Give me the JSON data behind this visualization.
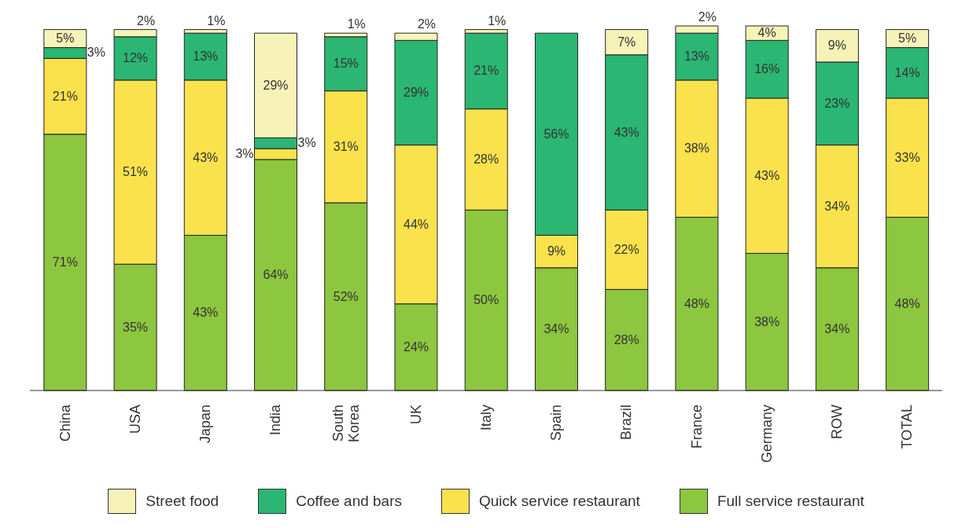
{
  "chart_data": {
    "type": "bar",
    "stacked": true,
    "categories": [
      "China",
      "USA",
      "Japan",
      "India",
      "South Korea",
      "UK",
      "Italy",
      "Spain",
      "Brazil",
      "France",
      "Germany",
      "ROW",
      "TOTAL"
    ],
    "series": [
      {
        "name": "Full service restaurant",
        "color": "#8dc63f",
        "values": [
          71,
          35,
          43,
          64,
          52,
          24,
          50,
          34,
          28,
          48,
          38,
          34,
          48
        ],
        "value_labels": [
          "71%",
          "35%",
          "43%",
          "64%",
          "52%",
          "24%",
          "50%",
          "34%",
          "28%",
          "48%",
          "38%",
          "34%",
          "48%"
        ]
      },
      {
        "name": "Quick service restaurant",
        "color": "#f9e24c",
        "values": [
          21,
          51,
          43,
          3,
          31,
          44,
          28,
          9,
          22,
          38,
          43,
          34,
          33
        ],
        "value_labels": [
          "21%",
          "51%",
          "43%",
          "3%",
          "31%",
          "44%",
          "28%",
          "9%",
          "22%",
          "38%",
          "43%",
          "34%",
          "33%"
        ]
      },
      {
        "name": "Coffee and bars",
        "color": "#2bb673",
        "values": [
          3,
          12,
          13,
          3,
          15,
          29,
          21,
          56,
          43,
          13,
          16,
          23,
          14
        ],
        "value_labels": [
          "3%",
          "12%",
          "13%",
          "3%",
          "15%",
          "29%",
          "21%",
          "56%",
          "43%",
          "13%",
          "16%",
          "23%",
          "14%"
        ]
      },
      {
        "name": "Street food",
        "color": "#f7f3b8",
        "values": [
          5,
          2,
          1,
          29,
          1,
          2,
          1,
          null,
          7,
          2,
          4,
          9,
          5
        ],
        "value_labels": [
          "5%",
          "2%",
          "1%",
          "29%",
          "1%",
          "2%",
          "1%",
          null,
          "7%",
          "2%",
          "4%",
          "9%",
          "5%"
        ]
      }
    ],
    "legend": "bottom",
    "grid": false
  }
}
